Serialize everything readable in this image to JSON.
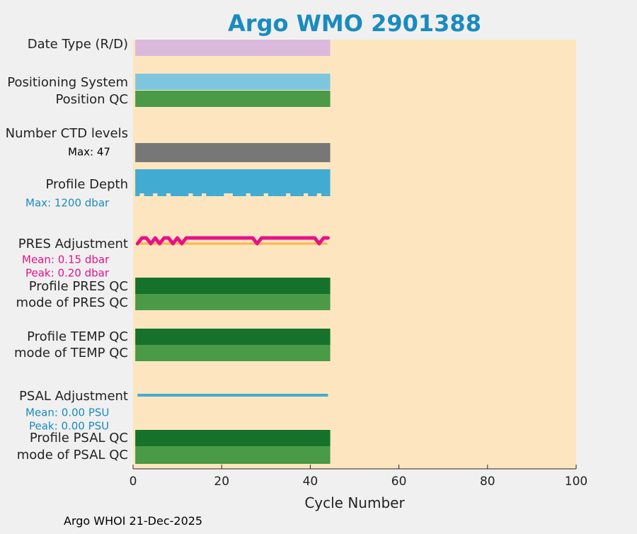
{
  "chart_data": {
    "type": "bar",
    "title": "Argo WMO 2901388",
    "xlabel": "Cycle Number",
    "xlim": [
      0,
      100
    ],
    "xticks": [
      0,
      20,
      40,
      60,
      80,
      100
    ],
    "cycle_range": [
      1,
      44
    ],
    "rows": [
      {
        "name": "date-type-row",
        "label": "Date Type (R/D)",
        "kind": "bar",
        "color": "#dbb9dc"
      },
      {
        "name": "positioning-system-row",
        "label": "Positioning System",
        "kind": "bar",
        "color": "#80c5de"
      },
      {
        "name": "position-qc-row",
        "label": "Position QC",
        "kind": "bar",
        "color": "#4a9a47"
      },
      {
        "name": "number-ctd-levels-row",
        "label": "Number CTD levels",
        "kind": "bar",
        "color": "#777777",
        "annotation": "Max: 47"
      },
      {
        "name": "profile-depth-row",
        "label": "Profile Depth",
        "kind": "depth",
        "color": "#42abd2",
        "annotation": "Max: 1200 dbar",
        "shallow_cycles": [
          2,
          5,
          8,
          13,
          16,
          21,
          22,
          26,
          30,
          35,
          39,
          42
        ]
      },
      {
        "name": "pres-adjustment-row",
        "label": "PRES Adjustment",
        "kind": "pres_line",
        "color": "#e8108a",
        "zero_color": "#ffb347",
        "annotations": [
          "Mean: 0.15 dbar",
          "Peak: 0.20 dbar"
        ],
        "dip_cycles": [
          1,
          4,
          6,
          9,
          11,
          28,
          42
        ]
      },
      {
        "name": "profile-pres-qc-row",
        "label": "Profile PRES QC",
        "kind": "bar",
        "color": "#16722a"
      },
      {
        "name": "mode-pres-qc-row",
        "label": "mode of PRES QC",
        "kind": "bar",
        "color": "#4a9a47"
      },
      {
        "name": "profile-temp-qc-row",
        "label": "Profile TEMP QC",
        "kind": "bar",
        "color": "#16722a"
      },
      {
        "name": "mode-temp-qc-row",
        "label": "mode of TEMP QC",
        "kind": "bar",
        "color": "#4a9a47"
      },
      {
        "name": "psal-adjustment-row",
        "label": "PSAL Adjustment",
        "kind": "psal_line",
        "color": "#42abd2",
        "annotations": [
          "Mean: 0.00 PSU",
          "Peak: 0.00 PSU"
        ]
      },
      {
        "name": "profile-psal-qc-row",
        "label": "Profile PSAL QC",
        "kind": "bar",
        "color": "#16722a"
      },
      {
        "name": "mode-psal-qc-row",
        "label": "mode of PSAL QC",
        "kind": "bar",
        "color": "#4a9a47"
      }
    ],
    "colors": {
      "plot_background": "#fde6bf",
      "figure_background": "#f0f0f0",
      "title": "#1a8bbf",
      "text": "#222222",
      "pres_annotation": "#e8108a",
      "psal_annotation": "#1a8bbf"
    }
  },
  "footer": {
    "text": "Argo WHOI 21-Dec-2025"
  }
}
